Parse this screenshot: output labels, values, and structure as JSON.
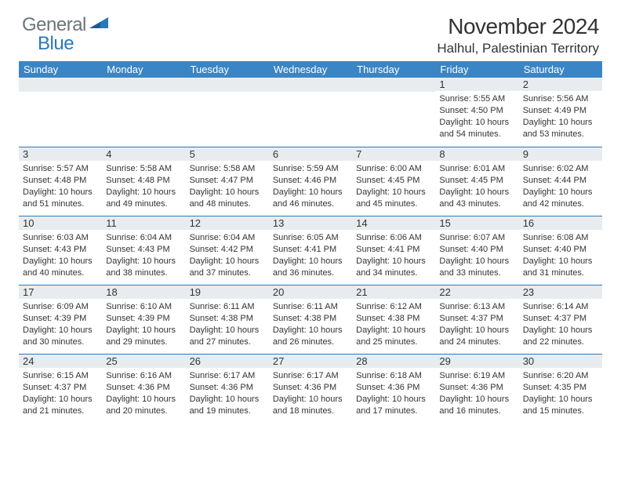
{
  "logo": {
    "word1": "General",
    "word2": "Blue"
  },
  "title": "November 2024",
  "location": "Halhul, Palestinian Territory",
  "weekdays": [
    "Sunday",
    "Monday",
    "Tuesday",
    "Wednesday",
    "Thursday",
    "Friday",
    "Saturday"
  ],
  "colors": {
    "header_bg": "#3a85c6",
    "header_text": "#ffffff",
    "daybar_bg": "#e9ecee",
    "border": "#2b78bc",
    "logo_gray": "#6b7579",
    "logo_blue": "#2b78bc",
    "text": "#333333",
    "background": "#ffffff"
  },
  "weeks": [
    [
      null,
      null,
      null,
      null,
      null,
      {
        "n": "1",
        "sr": "Sunrise: 5:55 AM",
        "ss": "Sunset: 4:50 PM",
        "d1": "Daylight: 10 hours",
        "d2": "and 54 minutes."
      },
      {
        "n": "2",
        "sr": "Sunrise: 5:56 AM",
        "ss": "Sunset: 4:49 PM",
        "d1": "Daylight: 10 hours",
        "d2": "and 53 minutes."
      }
    ],
    [
      {
        "n": "3",
        "sr": "Sunrise: 5:57 AM",
        "ss": "Sunset: 4:48 PM",
        "d1": "Daylight: 10 hours",
        "d2": "and 51 minutes."
      },
      {
        "n": "4",
        "sr": "Sunrise: 5:58 AM",
        "ss": "Sunset: 4:48 PM",
        "d1": "Daylight: 10 hours",
        "d2": "and 49 minutes."
      },
      {
        "n": "5",
        "sr": "Sunrise: 5:58 AM",
        "ss": "Sunset: 4:47 PM",
        "d1": "Daylight: 10 hours",
        "d2": "and 48 minutes."
      },
      {
        "n": "6",
        "sr": "Sunrise: 5:59 AM",
        "ss": "Sunset: 4:46 PM",
        "d1": "Daylight: 10 hours",
        "d2": "and 46 minutes."
      },
      {
        "n": "7",
        "sr": "Sunrise: 6:00 AM",
        "ss": "Sunset: 4:45 PM",
        "d1": "Daylight: 10 hours",
        "d2": "and 45 minutes."
      },
      {
        "n": "8",
        "sr": "Sunrise: 6:01 AM",
        "ss": "Sunset: 4:45 PM",
        "d1": "Daylight: 10 hours",
        "d2": "and 43 minutes."
      },
      {
        "n": "9",
        "sr": "Sunrise: 6:02 AM",
        "ss": "Sunset: 4:44 PM",
        "d1": "Daylight: 10 hours",
        "d2": "and 42 minutes."
      }
    ],
    [
      {
        "n": "10",
        "sr": "Sunrise: 6:03 AM",
        "ss": "Sunset: 4:43 PM",
        "d1": "Daylight: 10 hours",
        "d2": "and 40 minutes."
      },
      {
        "n": "11",
        "sr": "Sunrise: 6:04 AM",
        "ss": "Sunset: 4:43 PM",
        "d1": "Daylight: 10 hours",
        "d2": "and 38 minutes."
      },
      {
        "n": "12",
        "sr": "Sunrise: 6:04 AM",
        "ss": "Sunset: 4:42 PM",
        "d1": "Daylight: 10 hours",
        "d2": "and 37 minutes."
      },
      {
        "n": "13",
        "sr": "Sunrise: 6:05 AM",
        "ss": "Sunset: 4:41 PM",
        "d1": "Daylight: 10 hours",
        "d2": "and 36 minutes."
      },
      {
        "n": "14",
        "sr": "Sunrise: 6:06 AM",
        "ss": "Sunset: 4:41 PM",
        "d1": "Daylight: 10 hours",
        "d2": "and 34 minutes."
      },
      {
        "n": "15",
        "sr": "Sunrise: 6:07 AM",
        "ss": "Sunset: 4:40 PM",
        "d1": "Daylight: 10 hours",
        "d2": "and 33 minutes."
      },
      {
        "n": "16",
        "sr": "Sunrise: 6:08 AM",
        "ss": "Sunset: 4:40 PM",
        "d1": "Daylight: 10 hours",
        "d2": "and 31 minutes."
      }
    ],
    [
      {
        "n": "17",
        "sr": "Sunrise: 6:09 AM",
        "ss": "Sunset: 4:39 PM",
        "d1": "Daylight: 10 hours",
        "d2": "and 30 minutes."
      },
      {
        "n": "18",
        "sr": "Sunrise: 6:10 AM",
        "ss": "Sunset: 4:39 PM",
        "d1": "Daylight: 10 hours",
        "d2": "and 29 minutes."
      },
      {
        "n": "19",
        "sr": "Sunrise: 6:11 AM",
        "ss": "Sunset: 4:38 PM",
        "d1": "Daylight: 10 hours",
        "d2": "and 27 minutes."
      },
      {
        "n": "20",
        "sr": "Sunrise: 6:11 AM",
        "ss": "Sunset: 4:38 PM",
        "d1": "Daylight: 10 hours",
        "d2": "and 26 minutes."
      },
      {
        "n": "21",
        "sr": "Sunrise: 6:12 AM",
        "ss": "Sunset: 4:38 PM",
        "d1": "Daylight: 10 hours",
        "d2": "and 25 minutes."
      },
      {
        "n": "22",
        "sr": "Sunrise: 6:13 AM",
        "ss": "Sunset: 4:37 PM",
        "d1": "Daylight: 10 hours",
        "d2": "and 24 minutes."
      },
      {
        "n": "23",
        "sr": "Sunrise: 6:14 AM",
        "ss": "Sunset: 4:37 PM",
        "d1": "Daylight: 10 hours",
        "d2": "and 22 minutes."
      }
    ],
    [
      {
        "n": "24",
        "sr": "Sunrise: 6:15 AM",
        "ss": "Sunset: 4:37 PM",
        "d1": "Daylight: 10 hours",
        "d2": "and 21 minutes."
      },
      {
        "n": "25",
        "sr": "Sunrise: 6:16 AM",
        "ss": "Sunset: 4:36 PM",
        "d1": "Daylight: 10 hours",
        "d2": "and 20 minutes."
      },
      {
        "n": "26",
        "sr": "Sunrise: 6:17 AM",
        "ss": "Sunset: 4:36 PM",
        "d1": "Daylight: 10 hours",
        "d2": "and 19 minutes."
      },
      {
        "n": "27",
        "sr": "Sunrise: 6:17 AM",
        "ss": "Sunset: 4:36 PM",
        "d1": "Daylight: 10 hours",
        "d2": "and 18 minutes."
      },
      {
        "n": "28",
        "sr": "Sunrise: 6:18 AM",
        "ss": "Sunset: 4:36 PM",
        "d1": "Daylight: 10 hours",
        "d2": "and 17 minutes."
      },
      {
        "n": "29",
        "sr": "Sunrise: 6:19 AM",
        "ss": "Sunset: 4:36 PM",
        "d1": "Daylight: 10 hours",
        "d2": "and 16 minutes."
      },
      {
        "n": "30",
        "sr": "Sunrise: 6:20 AM",
        "ss": "Sunset: 4:35 PM",
        "d1": "Daylight: 10 hours",
        "d2": "and 15 minutes."
      }
    ]
  ]
}
